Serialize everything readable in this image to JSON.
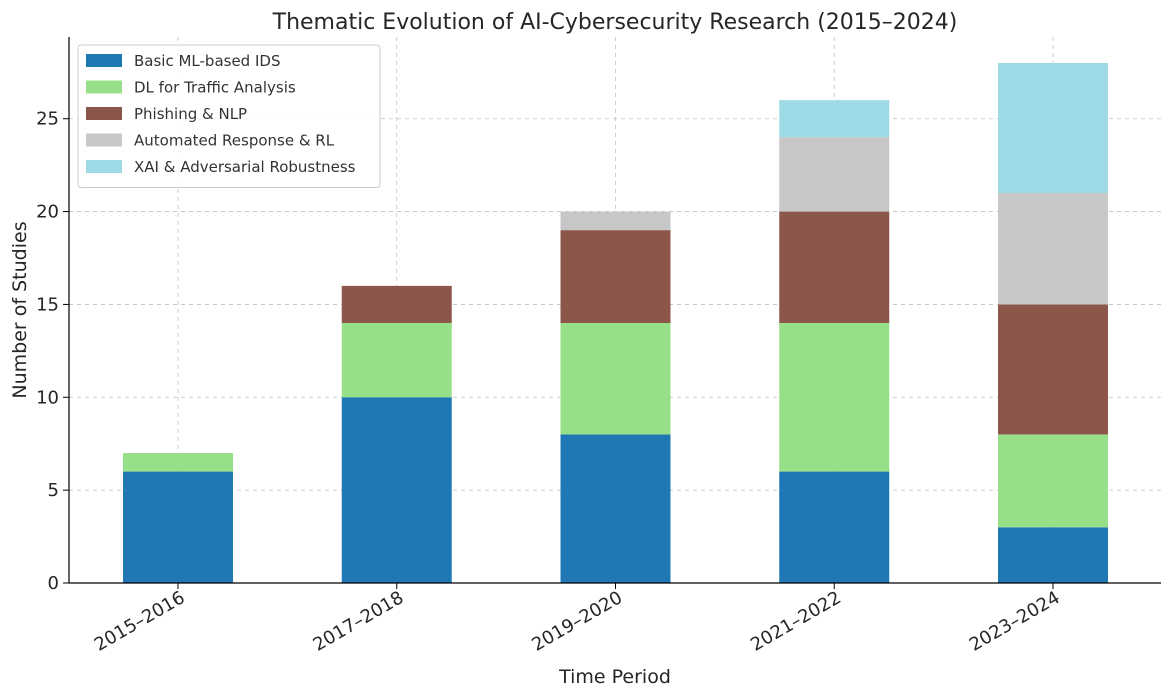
{
  "chart_data": {
    "type": "bar",
    "stacked": true,
    "title": "Thematic Evolution of AI-Cybersecurity Research (2015–2024)",
    "xlabel": "Time Period",
    "ylabel": "Number of Studies",
    "categories": [
      "2015–2016",
      "2017–2018",
      "2019–2020",
      "2021–2022",
      "2023–2024"
    ],
    "ylim": [
      0,
      29.4
    ],
    "yticks": [
      0,
      5,
      10,
      15,
      20,
      25
    ],
    "grid": true,
    "legend_position": "top-left",
    "series": [
      {
        "name": "Basic ML-based IDS",
        "color": "#1f77b4",
        "values": [
          6,
          10,
          8,
          6,
          3
        ]
      },
      {
        "name": "DL for Traffic Analysis",
        "color": "#98df8a",
        "values": [
          1,
          4,
          6,
          8,
          5
        ]
      },
      {
        "name": "Phishing & NLP",
        "color": "#8c564b",
        "values": [
          0,
          2,
          5,
          6,
          7
        ]
      },
      {
        "name": "Automated Response & RL",
        "color": "#c7c7c7",
        "values": [
          0,
          0,
          1,
          4,
          6
        ]
      },
      {
        "name": "XAI & Adversarial Robustness",
        "color": "#9edae5",
        "values": [
          0,
          0,
          0,
          2,
          7
        ]
      }
    ]
  }
}
